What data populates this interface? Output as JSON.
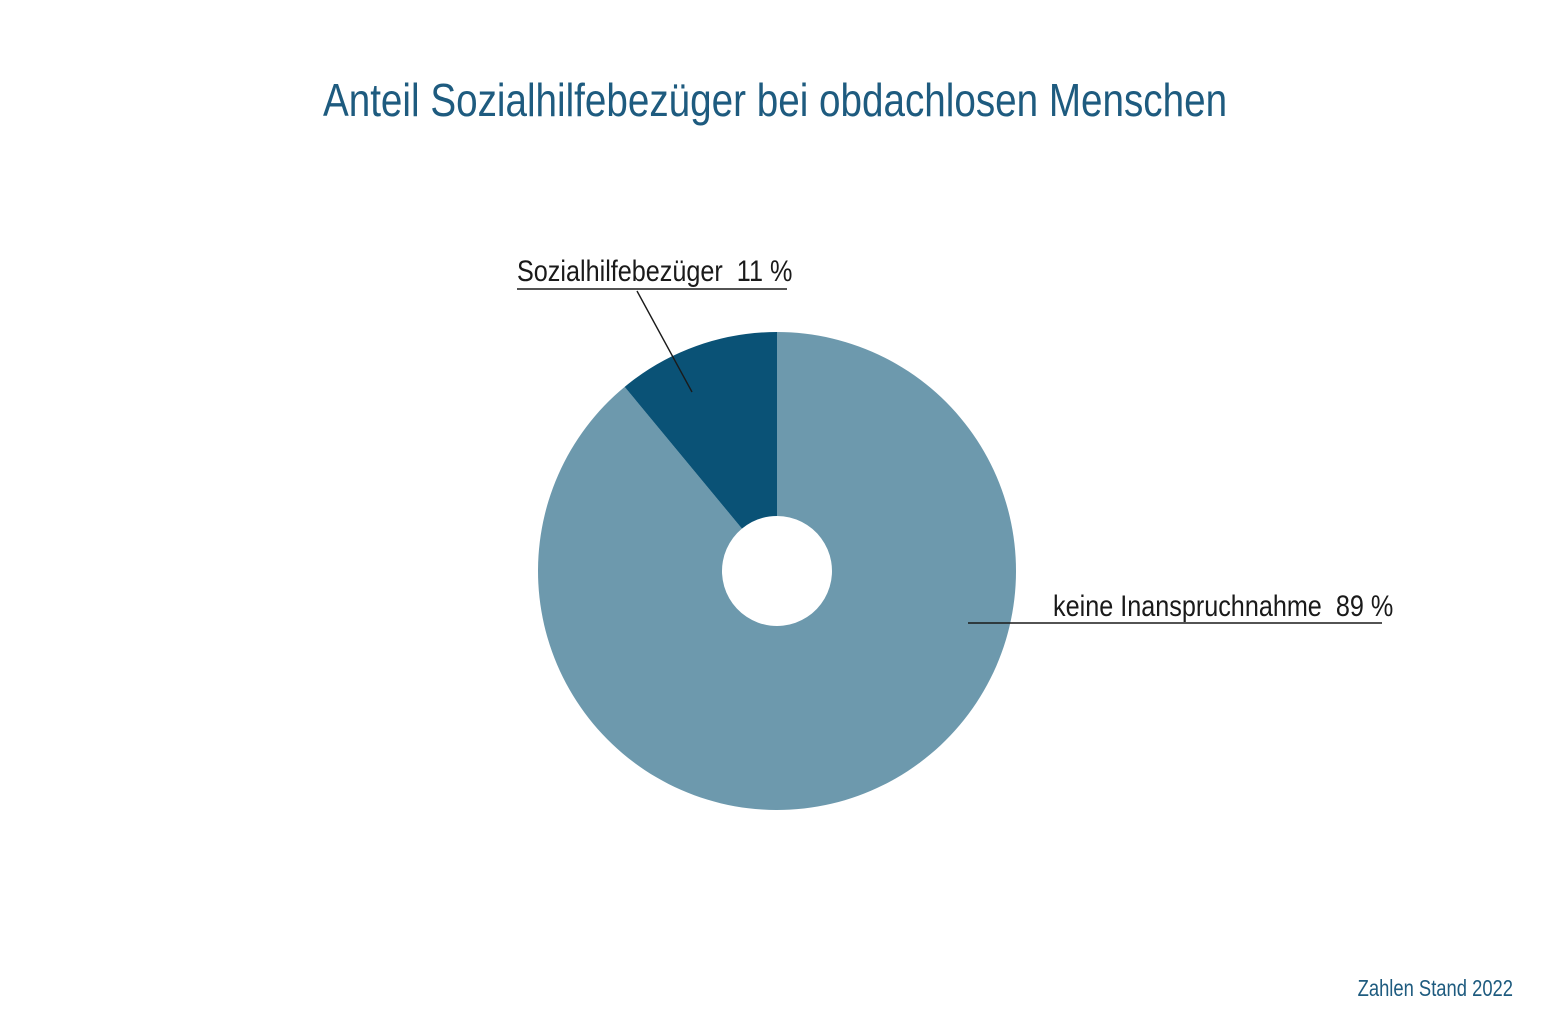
{
  "page": {
    "title": "Anteil Sozialhilfebezüger bei obdachlosen Menschen",
    "footer_note": "Zahlen Stand 2022"
  },
  "colors": {
    "background": "#ffffff",
    "title_text": "#1E5B7F",
    "footer_text": "#1E5B7F",
    "label_text": "#1a1a1a",
    "leader_line": "#1a1a1a",
    "slice_light": "#6D99AD",
    "slice_dark": "#0A5276"
  },
  "chart_data": {
    "type": "pie",
    "donut": true,
    "title": "Anteil Sozialhilfebezüger bei obdachlosen Menschen",
    "start_angle_deg": 0,
    "direction": "clockwise",
    "hole_ratio": 0.23,
    "legend_position": "none",
    "label_style": "callout-with-leader-line",
    "slices": [
      {
        "label": "keine Inanspruchnahme",
        "value": 89,
        "unit": "%",
        "color": "#6D99AD",
        "display": "keine Inanspruchnahme  89 %"
      },
      {
        "label": "Sozialhilfebezüger",
        "value": 11,
        "unit": "%",
        "color": "#0A5276",
        "display": "Sozialhilfebezüger  11 %"
      }
    ],
    "footnote": "Zahlen Stand 2022"
  }
}
